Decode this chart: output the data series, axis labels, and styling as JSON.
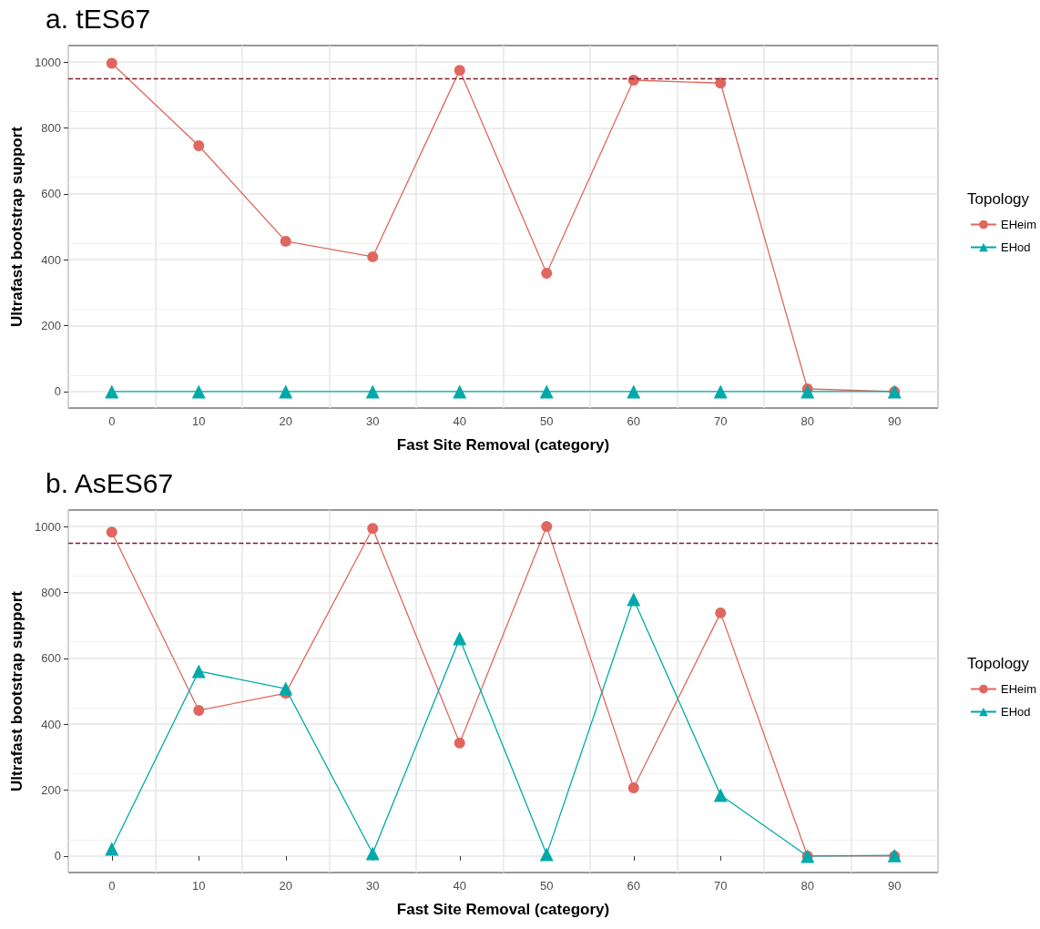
{
  "chart_data": [
    {
      "type": "line",
      "title": "a. tES67",
      "xlabel": "Fast Site Removal (category)",
      "ylabel": "Ultrafast bootstrap support",
      "legend_title": "Topology",
      "categories": [
        "0",
        "10",
        "20",
        "30",
        "40",
        "50",
        "60",
        "70",
        "80",
        "90"
      ],
      "series": [
        {
          "name": "EHeim",
          "color": "#e0675f",
          "marker": "circle",
          "values": [
            996,
            746,
            456,
            409,
            975,
            359,
            945,
            936,
            8,
            0
          ]
        },
        {
          "name": "EHod",
          "color": "#00a9a9",
          "marker": "triangle",
          "values": [
            0,
            0,
            0,
            0,
            0,
            0,
            0,
            0,
            0,
            0
          ]
        }
      ],
      "ylim": [
        -50,
        1050
      ],
      "yticks": [
        0,
        200,
        400,
        600,
        800,
        1000
      ],
      "grid": true,
      "legend": "right",
      "line_style": "solid",
      "ref_lines": [
        {
          "axis": "y",
          "value": 950,
          "color": "#7b1b2a",
          "line_style": "dashed"
        }
      ]
    },
    {
      "type": "line",
      "title": "b. AsES67",
      "xlabel": "Fast Site Removal (category)",
      "ylabel": "Ultrafast bootstrap support",
      "legend_title": "Topology",
      "categories": [
        "0",
        "10",
        "20",
        "30",
        "40",
        "50",
        "60",
        "70",
        "80",
        "90"
      ],
      "series": [
        {
          "name": "EHeim",
          "color": "#e0675f",
          "marker": "circle",
          "values": [
            983,
            442,
            494,
            994,
            343,
            1000,
            207,
            738,
            0,
            0
          ]
        },
        {
          "name": "EHod",
          "color": "#00a9a9",
          "marker": "triangle",
          "values": [
            22,
            561,
            508,
            8,
            660,
            5,
            779,
            185,
            0,
            2
          ]
        }
      ],
      "ylim": [
        -50,
        1050
      ],
      "yticks": [
        0,
        200,
        400,
        600,
        800,
        1000
      ],
      "grid": true,
      "legend": "right",
      "line_style": "solid",
      "ref_lines": [
        {
          "axis": "y",
          "value": 950,
          "color": "#7b1b2a",
          "line_style": "dashed"
        }
      ]
    }
  ]
}
